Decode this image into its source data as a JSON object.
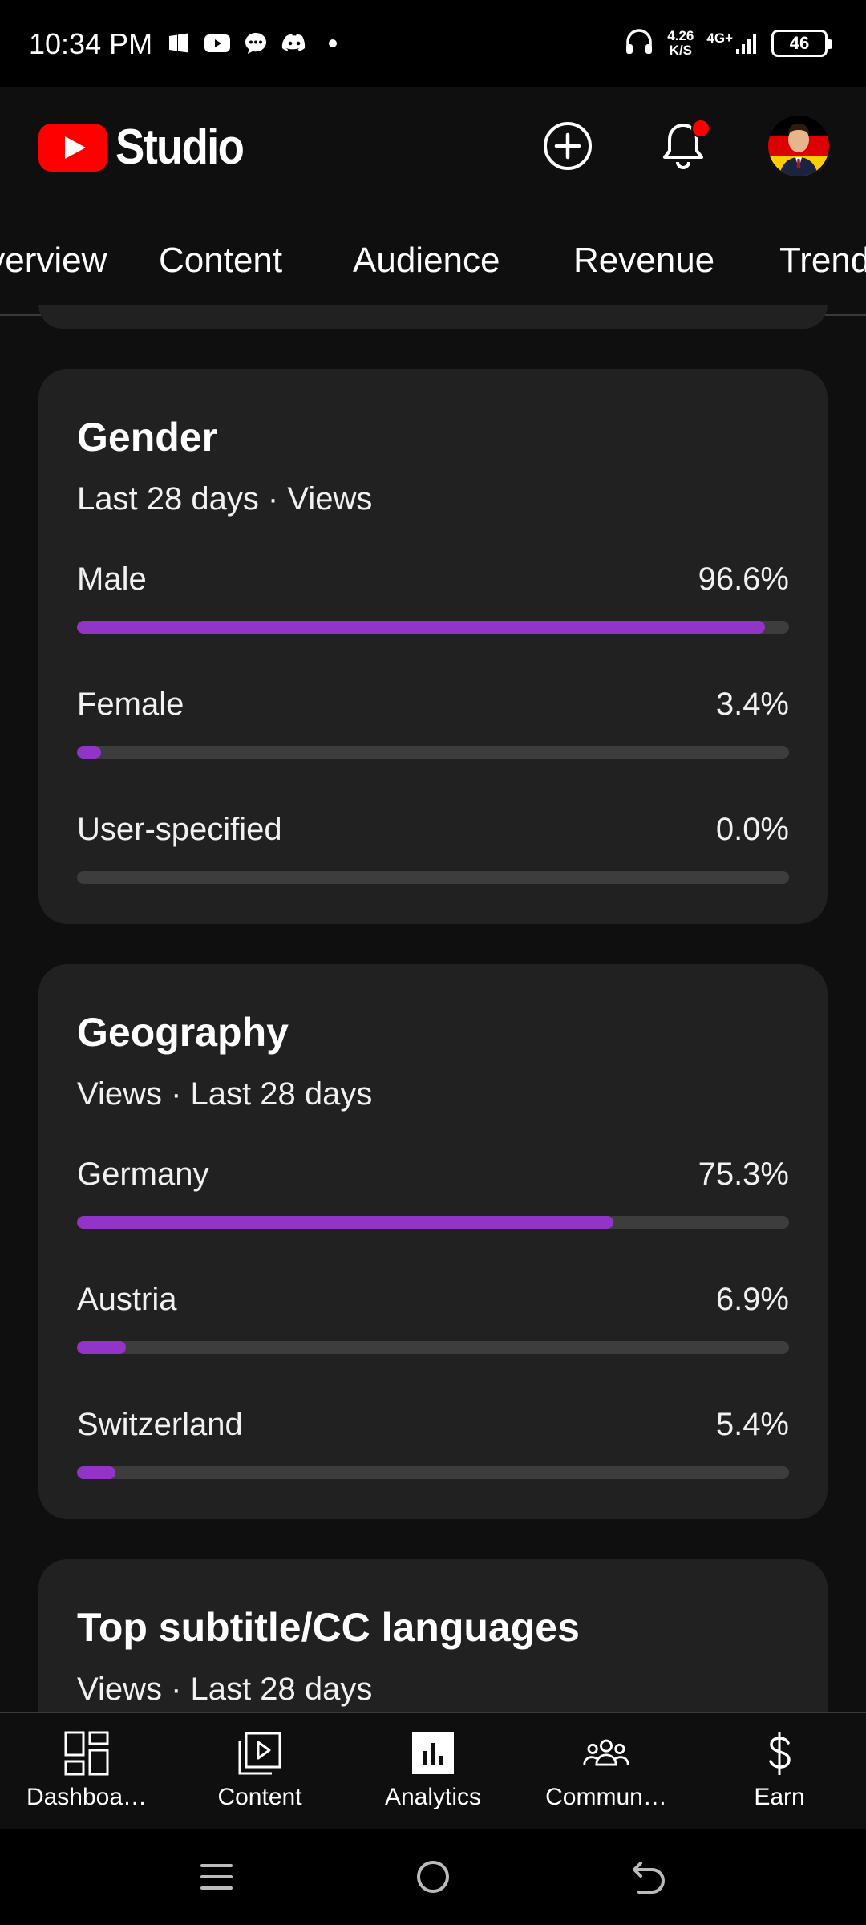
{
  "status_bar": {
    "time": "10:34 PM",
    "notification_icons": [
      "windows-icon",
      "youtube-icon",
      "chat-icon",
      "discord-icon",
      "dot-icon"
    ],
    "speed_value": "4.26",
    "speed_unit": "K/S",
    "network": "4G+",
    "battery": "46"
  },
  "header": {
    "logo_text": "Studio",
    "create_icon": "create-plus-icon",
    "bell_icon": "bell-icon"
  },
  "tabs": [
    {
      "label": "Overview",
      "active": false
    },
    {
      "label": "Content",
      "active": false
    },
    {
      "label": "Audience",
      "active": true
    },
    {
      "label": "Revenue",
      "active": false
    },
    {
      "label": "Trends",
      "active": false
    }
  ],
  "gender_card": {
    "title": "Gender",
    "subtitle": "Last 28 days · Views",
    "rows": [
      {
        "label": "Male",
        "value": "96.6%",
        "fraction": 0.966
      },
      {
        "label": "Female",
        "value": "3.4%",
        "fraction": 0.034
      },
      {
        "label": "User-specified",
        "value": "0.0%",
        "fraction": 0.0
      }
    ]
  },
  "geography_card": {
    "title": "Geography",
    "subtitle": "Views · Last 28 days",
    "rows": [
      {
        "label": "Germany",
        "value": "75.3%",
        "fraction": 0.753
      },
      {
        "label": "Austria",
        "value": "6.9%",
        "fraction": 0.069
      },
      {
        "label": "Switzerland",
        "value": "5.4%",
        "fraction": 0.054
      }
    ]
  },
  "subtitle_card": {
    "title": "Top subtitle/CC languages",
    "subtitle": "Views · Last 28 days"
  },
  "bottom_nav": [
    {
      "label": "Dashboa…",
      "icon": "dashboard-icon"
    },
    {
      "label": "Content",
      "icon": "content-icon"
    },
    {
      "label": "Analytics",
      "icon": "analytics-icon"
    },
    {
      "label": "Commun…",
      "icon": "community-icon"
    },
    {
      "label": "Earn",
      "icon": "earn-icon"
    }
  ],
  "colors": {
    "bar_fill": "#9334c8",
    "bar_track": "#3d3d3d",
    "card_bg": "#212121",
    "page_bg": "#0f0f0f",
    "brand_red": "#ff0000"
  }
}
